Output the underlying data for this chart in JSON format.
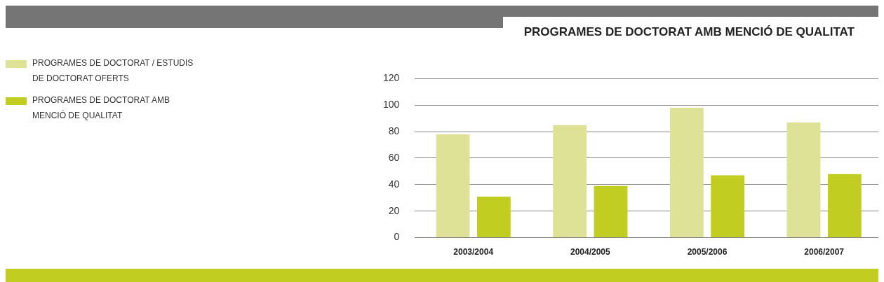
{
  "chart_data": {
    "type": "bar",
    "title": "PROGRAMES DE DOCTORAT AMB MENCIÓ DE QUALITAT",
    "categories": [
      "2003/2004",
      "2004/2005",
      "2005/2006",
      "2006/2007"
    ],
    "series": [
      {
        "name": "PROGRAMES DE DOCTORAT / ESTUDIS DE DOCTORAT OFERTS",
        "color": "#dee297",
        "values": [
          78,
          85,
          98,
          87
        ]
      },
      {
        "name": "PROGRAMES DE DOCTORAT AMB MENCIÓ DE QUALITAT",
        "color": "#c2cd22",
        "values": [
          31,
          39,
          47,
          48
        ]
      }
    ],
    "ylim": [
      0,
      120
    ],
    "yticks": [
      0,
      20,
      40,
      60,
      80,
      100,
      120
    ],
    "grid": "y",
    "legend": "left"
  }
}
